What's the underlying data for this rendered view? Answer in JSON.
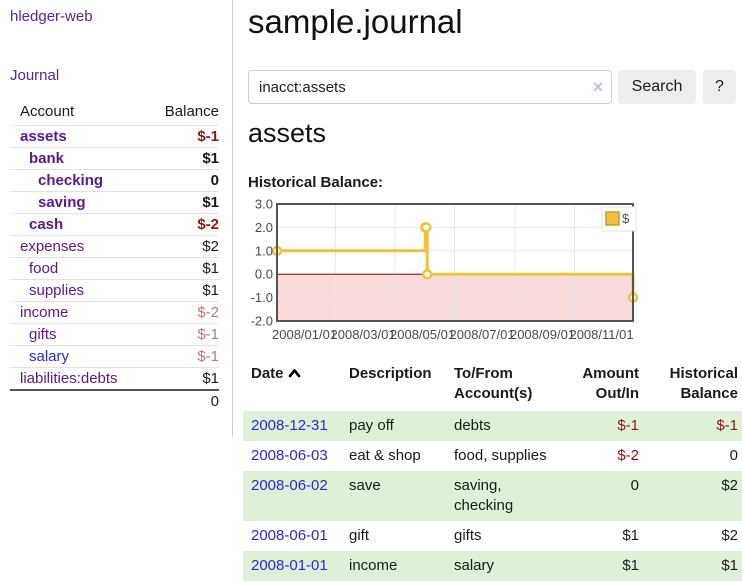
{
  "colors": {
    "link-purple": "#51279b",
    "account-purple": "#551a8b",
    "link-blue": "#2a2ad4",
    "negative-strong": "#8e1515",
    "negative-soft": "#bb7777",
    "row-green": "#dff0d8",
    "chart-yellow": "#edc240",
    "chart-negative-fill": "#fadbdb",
    "chart-zero-line": "#8b0000",
    "chart-border": "#545454"
  },
  "app": {
    "title": "hledger-web",
    "nav": {
      "journal": "Journal"
    }
  },
  "sidebar": {
    "header": {
      "account": "Account",
      "balance": "Balance"
    },
    "accounts": [
      {
        "name": "assets",
        "balance": "$-1"
      },
      {
        "name": "bank",
        "balance": "$1"
      },
      {
        "name": "checking",
        "balance": "0"
      },
      {
        "name": "saving",
        "balance": "$1"
      },
      {
        "name": "cash",
        "balance": "$-2"
      },
      {
        "name": "expenses",
        "balance": "$2"
      },
      {
        "name": "food",
        "balance": "$1"
      },
      {
        "name": "supplies",
        "balance": "$1"
      },
      {
        "name": "income",
        "balance": "$-2"
      },
      {
        "name": "gifts",
        "balance": "$-1"
      },
      {
        "name": "salary",
        "balance": "$-1"
      },
      {
        "name": "liabilities:debts",
        "balance": "$1"
      }
    ],
    "total": "0"
  },
  "main": {
    "title": "sample.journal",
    "search": {
      "value": "inacct:assets",
      "clear": "×",
      "search_button": "Search",
      "help_button": "?"
    },
    "account_heading": "assets",
    "chart_title": "Historical Balance:"
  },
  "chart_data": {
    "type": "line",
    "steps": true,
    "title": "Historical Balance:",
    "x_range": [
      "2008-01-01",
      "2008-12-31"
    ],
    "ylim": [
      -2,
      3
    ],
    "yticks": [
      3,
      2,
      1,
      0,
      -1,
      -2
    ],
    "xticks": [
      [
        "2008-01-01",
        "2008/01/01"
      ],
      [
        "2008-03-01",
        "2008/03/01"
      ],
      [
        "2008-05-01",
        "2008/05/01"
      ],
      [
        "2008-07-01",
        "2008/07/01"
      ],
      [
        "2008-09-01",
        "2008/09/01"
      ],
      [
        "2008-11-01",
        "2008/11/01"
      ]
    ],
    "series": [
      {
        "name": "$",
        "points": [
          [
            "2008-01-01",
            1
          ],
          [
            "2008-06-01",
            2
          ],
          [
            "2008-06-02",
            2
          ],
          [
            "2008-06-03",
            0
          ],
          [
            "2008-12-31",
            -1
          ]
        ]
      }
    ],
    "legend": {
      "position": "top-right",
      "label": "$"
    },
    "grid": true,
    "negative_region_shaded": true
  },
  "register": {
    "columns": [
      "Date",
      "Description",
      "To/From Account(s)",
      "Amount Out/In",
      "Historical Balance"
    ],
    "rows": [
      {
        "date": "2008-12-31",
        "description": "pay off",
        "accounts": "debts",
        "amount": "$-1",
        "balance": "$-1"
      },
      {
        "date": "2008-06-03",
        "description": "eat & shop",
        "accounts": "food, supplies",
        "amount": "$-2",
        "balance": "0"
      },
      {
        "date": "2008-06-02",
        "description": "save",
        "accounts": "saving, checking",
        "amount": "0",
        "balance": "$2"
      },
      {
        "date": "2008-06-01",
        "description": "gift",
        "accounts": "gifts",
        "amount": "$1",
        "balance": "$2"
      },
      {
        "date": "2008-01-01",
        "description": "income",
        "accounts": "salary",
        "amount": "$1",
        "balance": "$1"
      }
    ]
  }
}
